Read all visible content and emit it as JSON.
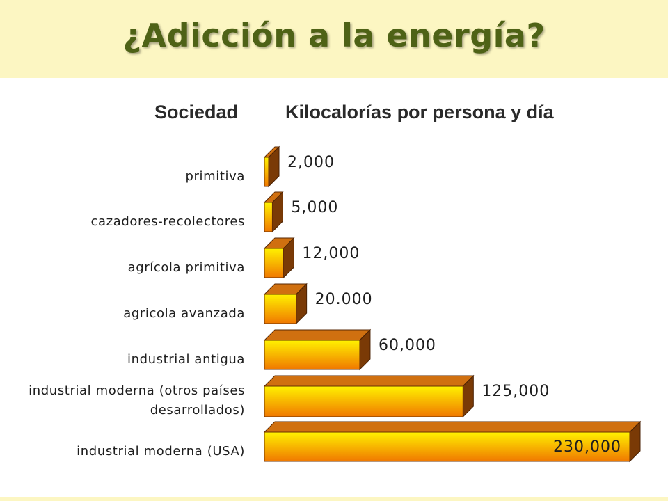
{
  "title": "¿Adicción a la energía?",
  "colors": {
    "title": "#4e6216",
    "bar_front_top": "#fff200",
    "bar_front_bottom": "#f07800",
    "bar_top": "#d07010",
    "bar_side": "#7a3a06"
  },
  "chart_data": {
    "type": "bar",
    "orientation": "horizontal",
    "style": "3d",
    "column_headers": [
      "Sociedad",
      "Kilocalorías por persona y día"
    ],
    "categories": [
      [
        "primitiva"
      ],
      [
        "cazadores-recolectores"
      ],
      [
        "agrícola primitiva"
      ],
      [
        "agricola avanzada"
      ],
      [
        "industrial antigua"
      ],
      [
        "industrial moderna (otros países",
        "desarrollados)"
      ],
      [
        "industrial moderna (USA)"
      ]
    ],
    "values": [
      2000,
      5000,
      12000,
      20000,
      60000,
      125000,
      230000
    ],
    "value_labels": [
      "2,000",
      "5,000",
      "12,000",
      "20.000",
      "60,000",
      "125,000",
      "230,000"
    ],
    "xlim": [
      0,
      230000
    ],
    "grid": false,
    "legend": "none"
  }
}
